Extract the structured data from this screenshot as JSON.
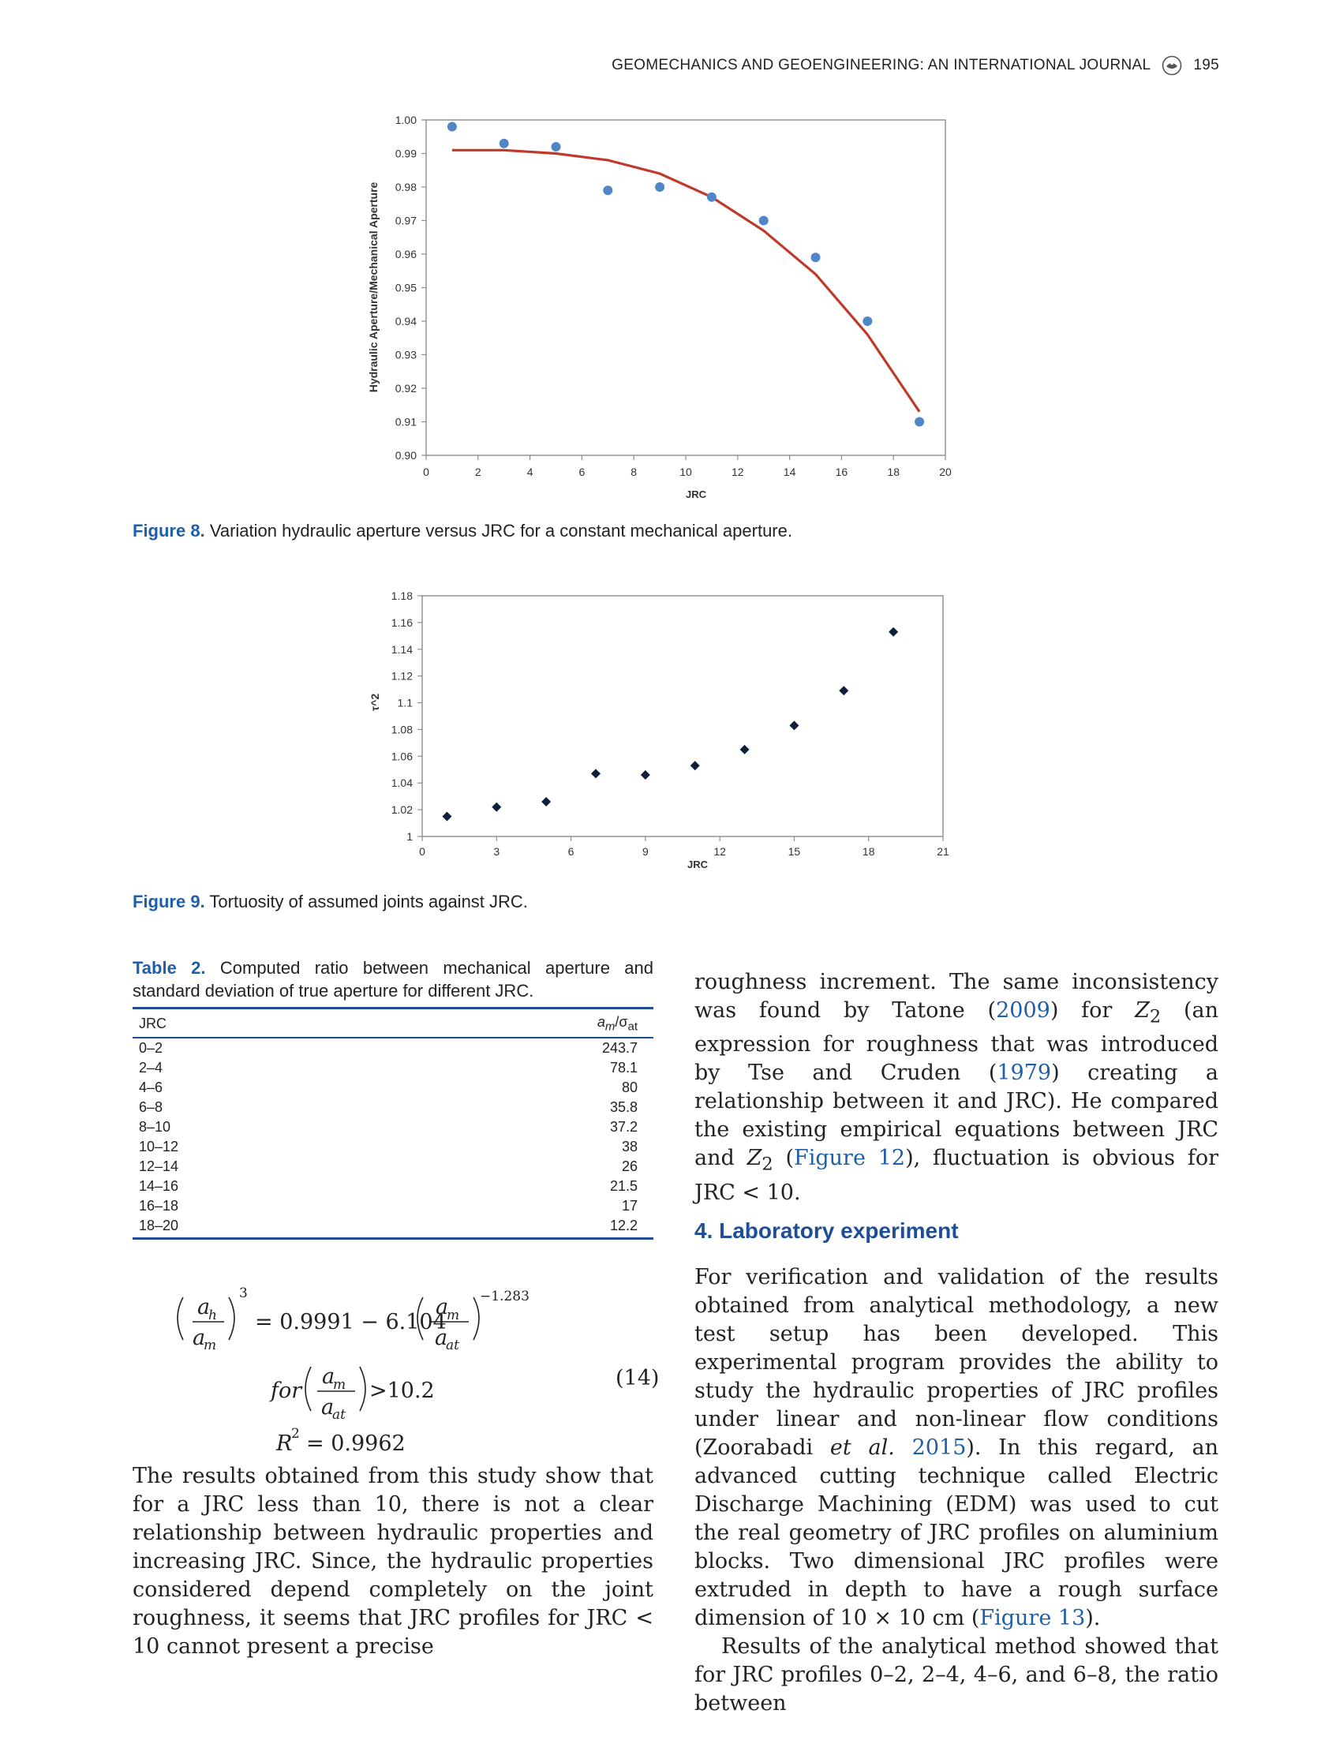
{
  "header": {
    "journal": "GEOMECHANICS AND GEOENGINEERING: AN INTERNATIONAL JOURNAL",
    "page_number": "195",
    "logo_icon": "crossmark-icon"
  },
  "figure8": {
    "label": "Figure 8.",
    "caption": "Variation hydraulic aperture versus JRC for a constant mechanical aperture."
  },
  "figure9": {
    "label": "Figure 9.",
    "caption": "Tortuosity of assumed joints against JRC."
  },
  "chart_data": [
    {
      "type": "scatter",
      "xlabel": "JRC",
      "ylabel": "Hydraulic Aperture/Mechanical Aperture",
      "xlim": [
        0,
        20
      ],
      "ylim": [
        0.9,
        1.0
      ],
      "xticks": [
        "0",
        "2",
        "4",
        "6",
        "8",
        "10",
        "12",
        "14",
        "16",
        "18",
        "20"
      ],
      "yticks": [
        "0.90",
        "0.91",
        "0.92",
        "0.93",
        "0.94",
        "0.95",
        "0.96",
        "0.97",
        "0.98",
        "0.99",
        "1.00"
      ],
      "series": [
        {
          "x": [
            1,
            3,
            5,
            7,
            9,
            11,
            13,
            15,
            17,
            19
          ],
          "y": [
            0.998,
            0.993,
            0.992,
            0.979,
            0.98,
            0.977,
            0.97,
            0.959,
            0.94,
            0.91
          ]
        }
      ],
      "trendline": {
        "x": [
          1,
          3,
          5,
          7,
          9,
          11,
          13,
          15,
          17,
          19
        ],
        "y": [
          0.991,
          0.991,
          0.99,
          0.988,
          0.984,
          0.977,
          0.967,
          0.954,
          0.936,
          0.913
        ]
      },
      "marker_color": "#4f86c6",
      "trend_color": "#c0392b",
      "grid": false
    },
    {
      "type": "scatter",
      "xlabel": "JRC",
      "ylabel": "τ^2",
      "xlim": [
        0,
        21
      ],
      "ylim": [
        1.0,
        1.18
      ],
      "xticks": [
        "0",
        "3",
        "6",
        "9",
        "12",
        "15",
        "18",
        "21"
      ],
      "yticks": [
        "1",
        "1.02",
        "1.04",
        "1.06",
        "1.08",
        "1.1",
        "1.12",
        "1.14",
        "1.16",
        "1.18"
      ],
      "series": [
        {
          "x": [
            1,
            3,
            5,
            7,
            9,
            11,
            13,
            15,
            17,
            19
          ],
          "y": [
            1.015,
            1.022,
            1.026,
            1.047,
            1.046,
            1.053,
            1.065,
            1.083,
            1.109,
            1.153
          ]
        }
      ],
      "marker_color": "#0f1e3a",
      "marker_shape": "diamond",
      "grid": false
    }
  ],
  "table2": {
    "label": "Table 2.",
    "caption": "Computed ratio between mechanical aperture and standard deviation of true aperture for different JRC.",
    "col_jrc": "JRC",
    "col_ratio_main": "a",
    "col_ratio_sub": "m",
    "col_ratio_sep": "/σ",
    "col_ratio_sub2": "at",
    "rows": [
      {
        "jrc": "0–2",
        "ratio": "243.7"
      },
      {
        "jrc": "2–4",
        "ratio": "78.1"
      },
      {
        "jrc": "4–6",
        "ratio": "80"
      },
      {
        "jrc": "6–8",
        "ratio": "35.8"
      },
      {
        "jrc": "8–10",
        "ratio": "37.2"
      },
      {
        "jrc": "10–12",
        "ratio": "38"
      },
      {
        "jrc": "12–14",
        "ratio": "26"
      },
      {
        "jrc": "14–16",
        "ratio": "21.5"
      },
      {
        "jrc": "16–18",
        "ratio": "17"
      },
      {
        "jrc": "18–20",
        "ratio": "12.2"
      }
    ]
  },
  "equation": {
    "exp3": "3",
    "eq_rhs": "= 0.9991 − 6.104",
    "exp": "−1.283",
    "for": "for",
    "cond": ">10.2",
    "r2": "= 0.9962",
    "number": "(14)",
    "ah": "a",
    "ah_sub": "h",
    "am": "a",
    "am_sub": "m",
    "aat": "a",
    "aat_sub": "at",
    "r": "R",
    "r_exp": "2"
  },
  "left_text": "The results obtained from this study show that for a JRC less than 10, there is not a clear relationship between hydraulic properties and increasing JRC. Since, the hydraulic properties considered depend completely on the joint roughness, it seems that JRC profiles for JRC < 10 cannot present a precise",
  "right_p1": {
    "t1": "roughness increment. The same inconsistency was found by Tatone (",
    "r1": "2009",
    "t2": ") for ",
    "z": "Z",
    "zsub": "2",
    "t3": " (an expression for roughness that was introduced by Tse and Cruden (",
    "r2": "1979",
    "t4": ") creating a relationship between it and JRC). He compared the existing empirical equations between JRC and ",
    "t5": " (",
    "r3": "Figure 12",
    "t6": "), fluctuation is obvious for JRC < 10."
  },
  "section": {
    "heading": "4. Laboratory experiment"
  },
  "right_p2": {
    "t1": "For verification and validation of the results obtained from analytical methodology, a new test setup has been developed. This experimental program provides the ability to study the hydraulic properties of JRC profiles under linear and non-linear flow conditions (Zoorabadi ",
    "etal": "et al.",
    "r1": "2015",
    "t2": "). In this regard, an advanced cutting technique called Electric Discharge Machining (EDM) was used to cut the real geometry of JRC profiles on aluminium blocks. Two dimensional JRC profiles were extruded in depth to have a rough surface dimension of 10 × 10 cm (",
    "r2": "Figure 13",
    "t3": ")."
  },
  "right_p3": "Results of the analytical method showed that for JRC profiles 0–2, 2–4, 4–6, and 6–8, the ratio between"
}
